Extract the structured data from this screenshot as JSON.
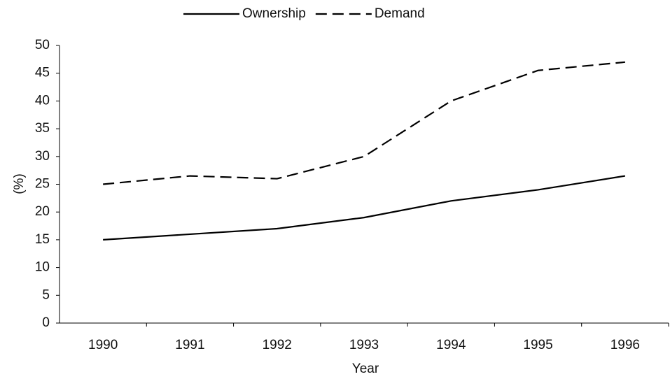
{
  "chart_data": {
    "type": "line",
    "categories": [
      "1990",
      "1991",
      "1992",
      "1993",
      "1994",
      "1995",
      "1996"
    ],
    "series": [
      {
        "name": "Ownership",
        "color": "#000000",
        "dash": "solid",
        "values": [
          15,
          16,
          17,
          19,
          22,
          24,
          26.5
        ]
      },
      {
        "name": "Demand",
        "color": "#000000",
        "dash": "dashed",
        "values": [
          25,
          26.5,
          26,
          30,
          40,
          45.5,
          47
        ]
      }
    ],
    "x_label": "Year",
    "y_label": "(%)",
    "ylim": [
      0,
      50
    ],
    "yticks": [
      0,
      5,
      10,
      15,
      20,
      25,
      30,
      35,
      40,
      45,
      50
    ],
    "grid": false,
    "legend": "top"
  }
}
